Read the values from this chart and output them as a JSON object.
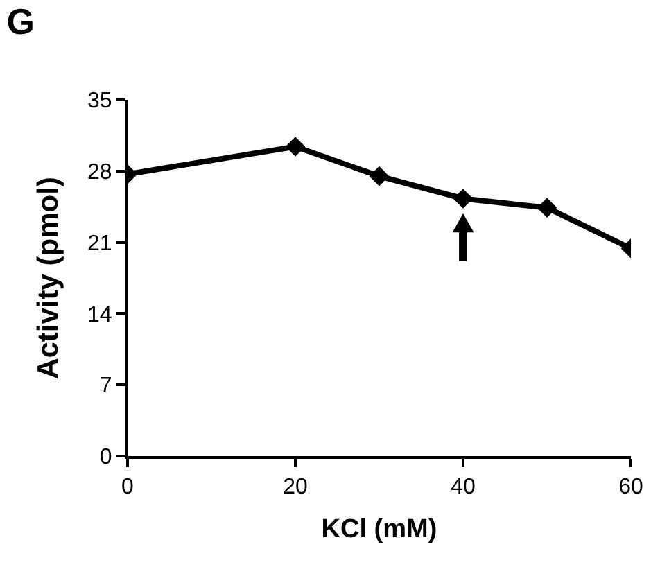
{
  "chart_data": {
    "type": "line",
    "title": "G",
    "xlabel": "KCl (mM)",
    "ylabel": "Activity (pmol)",
    "x": [
      0,
      20,
      30,
      40,
      50,
      60
    ],
    "series": [
      {
        "color": "#000000",
        "values": [
          27.7,
          30.4,
          27.5,
          25.3,
          24.4,
          20.4
        ]
      }
    ],
    "xlim": [
      0,
      60
    ],
    "xticks": [
      0,
      20,
      40,
      60
    ],
    "ylim": [
      0,
      35
    ],
    "yticks": [
      0,
      7,
      14,
      21,
      28,
      35
    ],
    "marker": "diamond",
    "line_style": "solid"
  }
}
